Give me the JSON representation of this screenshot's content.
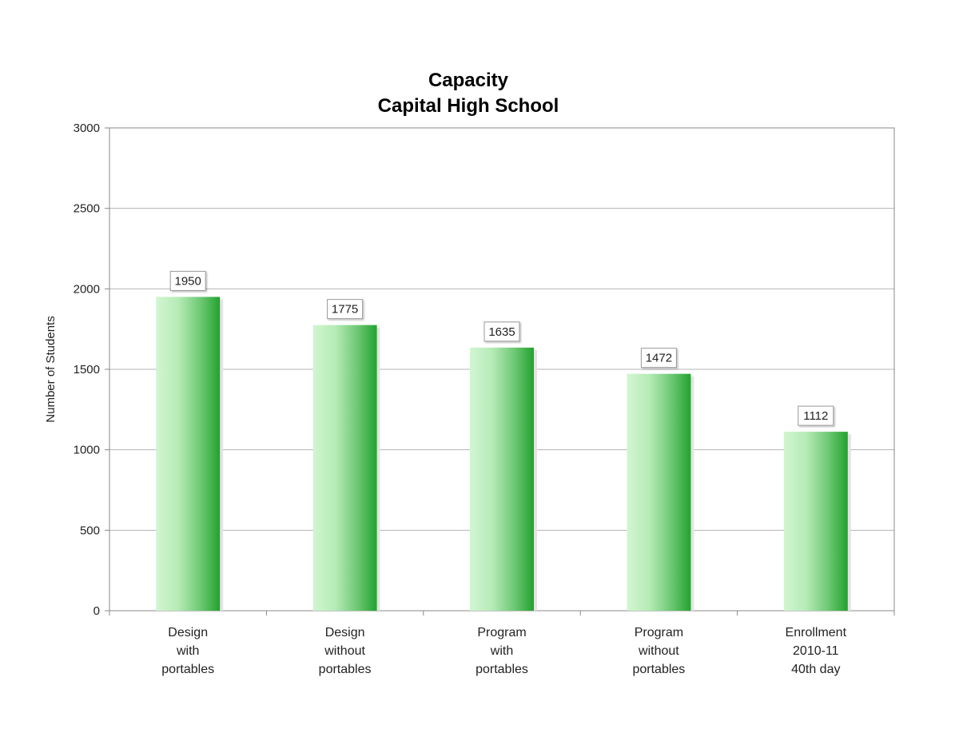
{
  "chart_data": {
    "type": "bar",
    "title": [
      "Capacity",
      "Capital High School"
    ],
    "xlabel": "",
    "ylabel": "Number of Students",
    "ylim": [
      0,
      3000
    ],
    "yticks": [
      0,
      500,
      1000,
      1500,
      2000,
      2500,
      3000
    ],
    "categories": [
      [
        "Design",
        "with",
        "portables"
      ],
      [
        "Design",
        "without",
        "portables"
      ],
      [
        "Program",
        "with",
        "portables"
      ],
      [
        "Program",
        "without",
        "portables"
      ],
      [
        "Enrollment",
        "2010-11",
        "40th day"
      ]
    ],
    "values": [
      1950,
      1775,
      1635,
      1472,
      1112
    ],
    "data_labels": [
      "1950",
      "1775",
      "1635",
      "1472",
      "1112"
    ],
    "grid": true,
    "legend": "none",
    "colors": {
      "bar_light": "#d2f5d2",
      "bar_dark": "#22a22e",
      "gridline": "#b4b4b4",
      "axis": "#888888",
      "label_box_border": "#999999"
    }
  }
}
